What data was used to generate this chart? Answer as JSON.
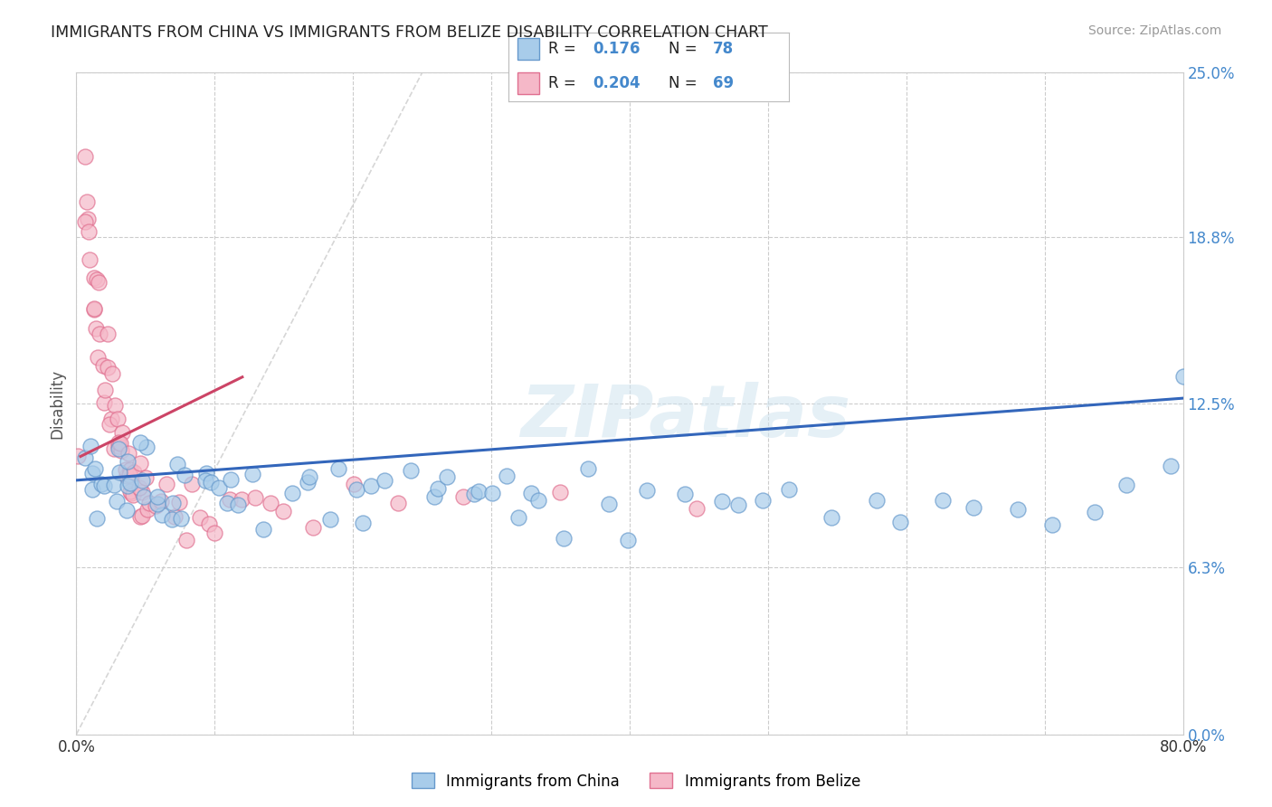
{
  "title": "IMMIGRANTS FROM CHINA VS IMMIGRANTS FROM BELIZE DISABILITY CORRELATION CHART",
  "source": "Source: ZipAtlas.com",
  "ylabel": "Disability",
  "xlim": [
    0.0,
    0.8
  ],
  "ylim": [
    0.0,
    0.25
  ],
  "ytick_values": [
    0.0,
    0.063,
    0.125,
    0.188,
    0.25
  ],
  "ytick_labels_right": [
    "0.0%",
    "6.3%",
    "12.5%",
    "18.8%",
    "25.0%"
  ],
  "xtick_values": [
    0.0,
    0.1,
    0.2,
    0.3,
    0.4,
    0.5,
    0.6,
    0.7,
    0.8
  ],
  "xtick_labels": [
    "0.0%",
    "",
    "",
    "",
    "",
    "",
    "",
    "",
    "80.0%"
  ],
  "grid_color": "#cccccc",
  "china_color": "#A8CCEA",
  "china_edge": "#6699CC",
  "belize_color": "#F5B8C8",
  "belize_edge": "#E07090",
  "china_line_color": "#3366BB",
  "belize_line_color": "#CC4466",
  "legend_label_china": "Immigrants from China",
  "legend_label_belize": "Immigrants from Belize",
  "china_R": "0.176",
  "china_N": "78",
  "belize_R": "0.204",
  "belize_N": "69",
  "china_scatter_x": [
    0.005,
    0.008,
    0.01,
    0.012,
    0.015,
    0.018,
    0.02,
    0.022,
    0.025,
    0.028,
    0.03,
    0.032,
    0.035,
    0.038,
    0.04,
    0.042,
    0.045,
    0.048,
    0.05,
    0.052,
    0.055,
    0.058,
    0.06,
    0.065,
    0.07,
    0.075,
    0.08,
    0.085,
    0.09,
    0.095,
    0.1,
    0.105,
    0.11,
    0.115,
    0.12,
    0.13,
    0.14,
    0.15,
    0.16,
    0.17,
    0.18,
    0.19,
    0.2,
    0.21,
    0.22,
    0.23,
    0.24,
    0.25,
    0.26,
    0.27,
    0.28,
    0.29,
    0.3,
    0.31,
    0.32,
    0.33,
    0.34,
    0.35,
    0.37,
    0.38,
    0.4,
    0.42,
    0.44,
    0.46,
    0.48,
    0.5,
    0.52,
    0.55,
    0.58,
    0.6,
    0.62,
    0.65,
    0.68,
    0.7,
    0.73,
    0.76,
    0.79,
    0.8
  ],
  "china_scatter_y": [
    0.1,
    0.115,
    0.105,
    0.095,
    0.09,
    0.1,
    0.095,
    0.085,
    0.09,
    0.1,
    0.085,
    0.095,
    0.1,
    0.09,
    0.095,
    0.085,
    0.1,
    0.09,
    0.095,
    0.105,
    0.085,
    0.09,
    0.095,
    0.1,
    0.085,
    0.09,
    0.095,
    0.085,
    0.09,
    0.095,
    0.085,
    0.09,
    0.095,
    0.085,
    0.09,
    0.095,
    0.085,
    0.09,
    0.095,
    0.1,
    0.085,
    0.09,
    0.095,
    0.085,
    0.09,
    0.095,
    0.1,
    0.085,
    0.09,
    0.095,
    0.085,
    0.09,
    0.095,
    0.1,
    0.085,
    0.09,
    0.095,
    0.085,
    0.1,
    0.095,
    0.085,
    0.09,
    0.095,
    0.085,
    0.09,
    0.095,
    0.1,
    0.085,
    0.09,
    0.085,
    0.09,
    0.095,
    0.085,
    0.09,
    0.085,
    0.09,
    0.095,
    0.125
  ],
  "belize_scatter_x": [
    0.003,
    0.005,
    0.006,
    0.007,
    0.008,
    0.009,
    0.01,
    0.011,
    0.012,
    0.013,
    0.014,
    0.015,
    0.016,
    0.017,
    0.018,
    0.019,
    0.02,
    0.021,
    0.022,
    0.023,
    0.024,
    0.025,
    0.026,
    0.027,
    0.028,
    0.029,
    0.03,
    0.031,
    0.032,
    0.033,
    0.034,
    0.035,
    0.036,
    0.037,
    0.038,
    0.039,
    0.04,
    0.041,
    0.042,
    0.043,
    0.044,
    0.045,
    0.046,
    0.047,
    0.048,
    0.05,
    0.052,
    0.055,
    0.058,
    0.06,
    0.065,
    0.07,
    0.075,
    0.08,
    0.085,
    0.09,
    0.095,
    0.1,
    0.11,
    0.12,
    0.13,
    0.14,
    0.15,
    0.17,
    0.2,
    0.23,
    0.28,
    0.35,
    0.45
  ],
  "belize_scatter_y": [
    0.105,
    0.215,
    0.205,
    0.195,
    0.19,
    0.18,
    0.175,
    0.185,
    0.16,
    0.17,
    0.155,
    0.165,
    0.155,
    0.145,
    0.15,
    0.14,
    0.135,
    0.145,
    0.13,
    0.135,
    0.125,
    0.13,
    0.12,
    0.125,
    0.115,
    0.12,
    0.11,
    0.115,
    0.105,
    0.11,
    0.105,
    0.1,
    0.105,
    0.1,
    0.095,
    0.1,
    0.095,
    0.1,
    0.09,
    0.095,
    0.09,
    0.085,
    0.09,
    0.085,
    0.09,
    0.085,
    0.09,
    0.085,
    0.09,
    0.085,
    0.09,
    0.085,
    0.09,
    0.085,
    0.09,
    0.085,
    0.09,
    0.085,
    0.09,
    0.085,
    0.09,
    0.085,
    0.09,
    0.085,
    0.09,
    0.085,
    0.09,
    0.085,
    0.09
  ],
  "china_line_x": [
    0.0,
    0.8
  ],
  "china_line_y": [
    0.096,
    0.127
  ],
  "belize_line_x": [
    0.003,
    0.12
  ],
  "belize_line_y": [
    0.105,
    0.135
  ],
  "identity_line_x": [
    0.0,
    0.25
  ],
  "identity_line_y": [
    0.0,
    0.25
  ]
}
